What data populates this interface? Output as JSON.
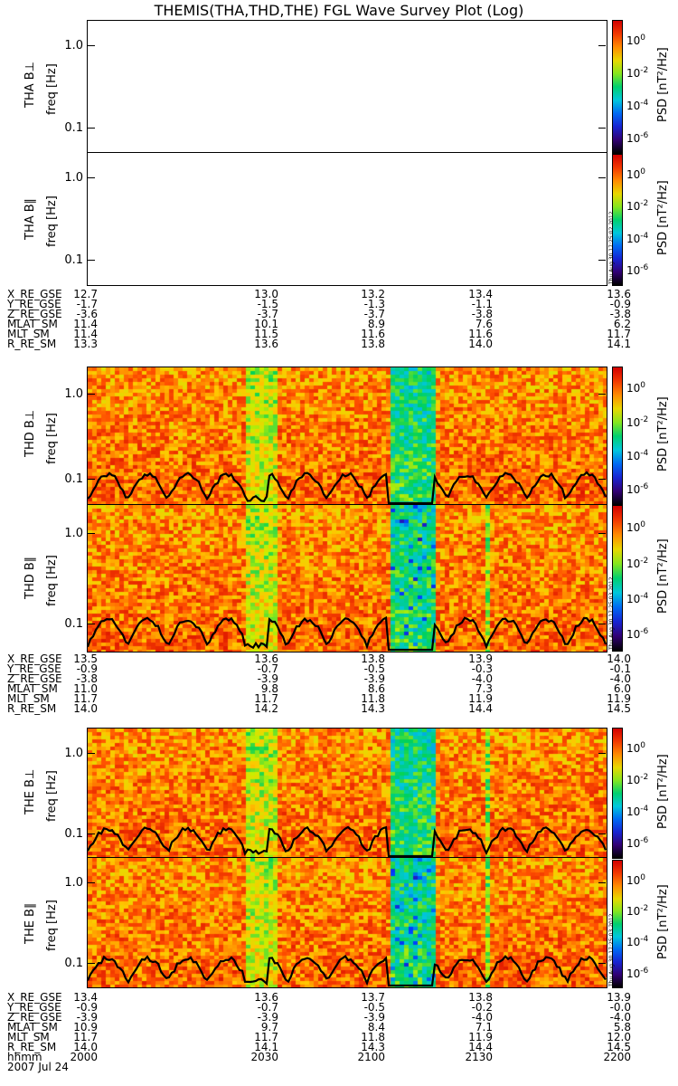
{
  "title": "THEMIS(THA,THD,THE) FGL Wave Survey Plot (Log)",
  "panels": [
    {
      "id": "tha-perp",
      "label": "THA B⊥",
      "freq_label": "freq [Hz]",
      "empty": true
    },
    {
      "id": "tha-par",
      "label": "THA B∥",
      "freq_label": "freq [Hz]",
      "empty": true
    },
    {
      "id": "thd-perp",
      "label": "THD B⊥",
      "freq_label": "freq [Hz]",
      "empty": false
    },
    {
      "id": "thd-par",
      "label": "THD B∥",
      "freq_label": "freq [Hz]",
      "empty": false
    },
    {
      "id": "the-perp",
      "label": "THE B⊥",
      "freq_label": "freq [Hz]",
      "empty": false
    },
    {
      "id": "the-par",
      "label": "THE B∥",
      "freq_label": "freq [Hz]",
      "empty": false
    }
  ],
  "yticks": [
    "1.0",
    "0.1"
  ],
  "colorbar": {
    "label": "PSD [nT²/Hz]",
    "ticks": [
      {
        "base": "10",
        "exp": "0"
      },
      {
        "base": "10",
        "exp": "-2"
      },
      {
        "base": "10",
        "exp": "-4"
      },
      {
        "base": "10",
        "exp": "-6"
      }
    ]
  },
  "stamps": [
    "Thu Aug 30 17:25:02 2012",
    "Thu Aug 30 17:25:03 2012",
    "Thu Aug 30 17:25:03 2012"
  ],
  "tables": [
    {
      "rows": [
        {
          "label": "X_RE_GSE",
          "values": [
            "12.7",
            "13.0",
            "13.2",
            "13.4",
            "13.6"
          ]
        },
        {
          "label": "Y_RE_GSE",
          "values": [
            "-1.7",
            "-1.5",
            "-1.3",
            "-1.1",
            "-0.9"
          ]
        },
        {
          "label": "Z_RE_GSE",
          "values": [
            "-3.6",
            "-3.7",
            "-3.7",
            "-3.8",
            "-3.8"
          ]
        },
        {
          "label": "MLAT_SM",
          "values": [
            "11.4",
            "10.1",
            "8.9",
            "7.6",
            "6.2"
          ]
        },
        {
          "label": "MLT_SM",
          "values": [
            "11.4",
            "11.5",
            "11.6",
            "11.6",
            "11.7"
          ]
        },
        {
          "label": "R_RE_SM",
          "values": [
            "13.3",
            "13.6",
            "13.8",
            "14.0",
            "14.1"
          ]
        }
      ]
    },
    {
      "rows": [
        {
          "label": "X_RE_GSE",
          "values": [
            "13.5",
            "13.6",
            "13.8",
            "13.9",
            "14.0"
          ]
        },
        {
          "label": "Y_RE_GSE",
          "values": [
            "-0.9",
            "-0.7",
            "-0.5",
            "-0.3",
            "-0.1"
          ]
        },
        {
          "label": "Z_RE_GSE",
          "values": [
            "-3.8",
            "-3.9",
            "-3.9",
            "-4.0",
            "-4.0"
          ]
        },
        {
          "label": "MLAT_SM",
          "values": [
            "11.0",
            "9.8",
            "8.6",
            "7.3",
            "6.0"
          ]
        },
        {
          "label": "MLT_SM",
          "values": [
            "11.7",
            "11.7",
            "11.8",
            "11.9",
            "11.9"
          ]
        },
        {
          "label": "R_RE_SM",
          "values": [
            "14.0",
            "14.2",
            "14.3",
            "14.4",
            "14.5"
          ]
        }
      ]
    },
    {
      "rows": [
        {
          "label": "X_RE_GSE",
          "values": [
            "13.4",
            "13.6",
            "13.7",
            "13.8",
            "13.9"
          ]
        },
        {
          "label": "Y_RE_GSE",
          "values": [
            "-0.9",
            "-0.7",
            "-0.5",
            "-0.2",
            "-0.0"
          ]
        },
        {
          "label": "Z_RE_GSE",
          "values": [
            "-3.9",
            "-3.9",
            "-3.9",
            "-4.0",
            "-4.0"
          ]
        },
        {
          "label": "MLAT_SM",
          "values": [
            "10.9",
            "9.7",
            "8.4",
            "7.1",
            "5.8"
          ]
        },
        {
          "label": "MLT_SM",
          "values": [
            "11.7",
            "11.7",
            "11.8",
            "11.9",
            "12.0"
          ]
        },
        {
          "label": "R_RE_SM",
          "values": [
            "14.0",
            "14.1",
            "14.3",
            "14.4",
            "14.5"
          ]
        },
        {
          "label": "hhmm",
          "values": [
            "2000",
            "2030",
            "2100",
            "2130",
            "2200"
          ]
        }
      ]
    }
  ],
  "date": "2007 Jul 24",
  "chart_data": {
    "type": "heatmap",
    "title": "THEMIS(THA,THD,THE) FGL Wave Survey Plot (Log)",
    "x": {
      "label": "hhmm",
      "ticks": [
        "2000",
        "2030",
        "2100",
        "2130",
        "2200"
      ],
      "range": [
        "2000",
        "2200"
      ]
    },
    "y": {
      "label": "freq [Hz]",
      "scale": "log",
      "ticks": [
        1.0,
        0.1
      ]
    },
    "z": {
      "label": "PSD [nT²/Hz]",
      "scale": "log",
      "ticks": [
        "10^0",
        "10^-2",
        "10^-4",
        "10^-6"
      ]
    },
    "panels": [
      "THA B⊥",
      "THA B∥",
      "THD B⊥",
      "THD B∥",
      "THE B⊥",
      "THE B∥"
    ],
    "note_empty": [
      "THA B⊥",
      "THA B∥"
    ],
    "colors": {
      "high": "#cc0000",
      "mid": "#ffff00",
      "low_mid": "#00cc66",
      "low": "#0000cc",
      "min": "#000000"
    }
  }
}
